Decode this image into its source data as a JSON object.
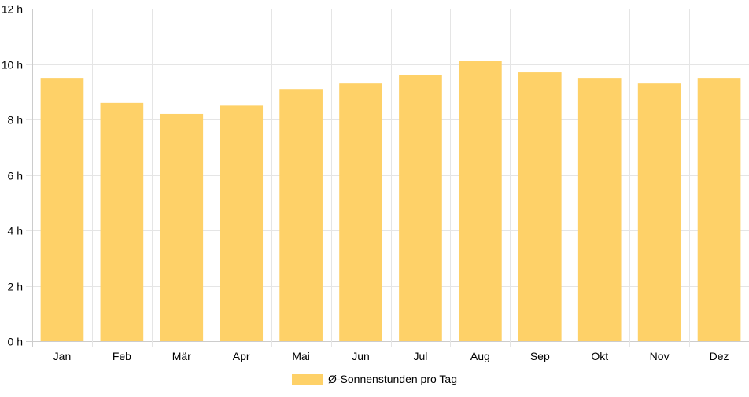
{
  "chart_data": {
    "type": "bar",
    "categories": [
      "Jan",
      "Feb",
      "Mär",
      "Apr",
      "Mai",
      "Jun",
      "Jul",
      "Aug",
      "Sep",
      "Okt",
      "Nov",
      "Dez"
    ],
    "series": [
      {
        "name": "Ø-Sonnenstunden pro Tag",
        "values": [
          9.5,
          8.6,
          8.2,
          8.5,
          9.1,
          9.3,
          9.6,
          10.1,
          9.7,
          9.5,
          9.3,
          9.5
        ]
      }
    ],
    "ylim": [
      0,
      12
    ],
    "yticks": [
      0,
      2,
      4,
      6,
      8,
      10,
      12
    ],
    "ytick_labels": [
      "0 h",
      "2 h",
      "4 h",
      "6 h",
      "8 h",
      "10 h",
      "12 h"
    ],
    "grid": true,
    "legend_position": "bottom",
    "colors": {
      "bar": "#fed168",
      "grid": "#e5e5e5",
      "axis": "#cccccc",
      "text": "#000000"
    }
  }
}
